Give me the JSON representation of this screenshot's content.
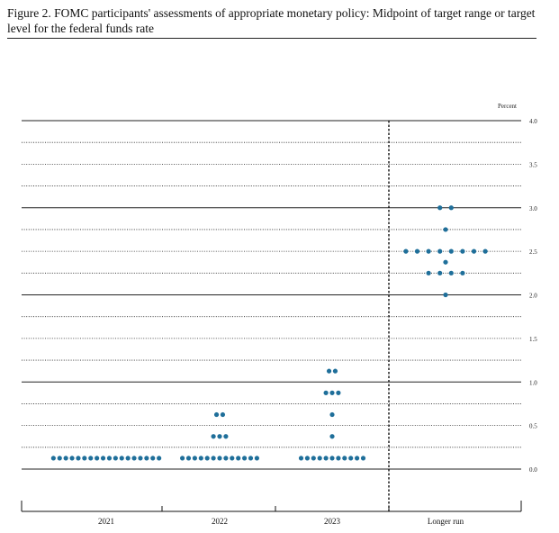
{
  "figure": {
    "caption": "Figure 2. FOMC participants' assessments of appropriate monetary policy: Midpoint of target range or target level for the federal funds rate"
  },
  "chart_data": {
    "type": "scatter",
    "unit_label": "Percent",
    "categories": [
      "2021",
      "2022",
      "2023",
      "Longer run"
    ],
    "ylim": [
      -0.25,
      4.0
    ],
    "y_ticks": [
      "0.0",
      "0.5",
      "1.0",
      "1.5",
      "2.0",
      "2.5",
      "3.0",
      "3.5",
      "4.0"
    ],
    "y_tick_values": [
      0.0,
      0.5,
      1.0,
      1.5,
      2.0,
      2.5,
      3.0,
      3.5,
      4.0
    ],
    "dot_color": "#1f6f9a",
    "points": [
      {
        "category": "2021",
        "y": 0.125,
        "count": 18
      },
      {
        "category": "2022",
        "y": 0.125,
        "count": 13
      },
      {
        "category": "2022",
        "y": 0.375,
        "count": 3
      },
      {
        "category": "2022",
        "y": 0.625,
        "count": 2
      },
      {
        "category": "2023",
        "y": 0.125,
        "count": 11
      },
      {
        "category": "2023",
        "y": 0.375,
        "count": 1
      },
      {
        "category": "2023",
        "y": 0.625,
        "count": 1
      },
      {
        "category": "2023",
        "y": 0.875,
        "count": 3
      },
      {
        "category": "2023",
        "y": 1.125,
        "count": 2
      },
      {
        "category": "Longer run",
        "y": 2.0,
        "count": 1
      },
      {
        "category": "Longer run",
        "y": 2.25,
        "count": 4
      },
      {
        "category": "Longer run",
        "y": 2.375,
        "count": 1
      },
      {
        "category": "Longer run",
        "y": 2.5,
        "count": 8
      },
      {
        "category": "Longer run",
        "y": 2.75,
        "count": 1
      },
      {
        "category": "Longer run",
        "y": 3.0,
        "count": 2
      }
    ]
  }
}
